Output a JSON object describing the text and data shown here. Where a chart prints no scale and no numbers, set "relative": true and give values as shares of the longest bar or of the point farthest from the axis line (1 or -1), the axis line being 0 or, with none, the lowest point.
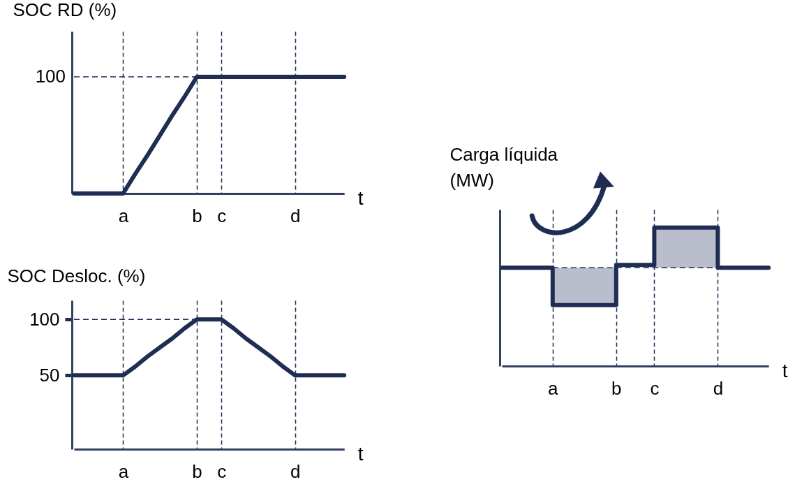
{
  "chart_data": [
    {
      "type": "line",
      "relative": true,
      "ylabel": "SOC RD (%)",
      "xlabel": "t",
      "categories": [
        null,
        null,
        null,
        null,
        "a",
        null,
        null,
        null,
        null,
        null,
        "b",
        null,
        "c",
        null,
        null,
        null,
        null,
        null,
        "d",
        null,
        null,
        null,
        null
      ],
      "grid": "x",
      "series": [
        {
          "color": "#1f2d52",
          "values": [
            0,
            0,
            0,
            0,
            0,
            0.17,
            0.33,
            0.5,
            0.67,
            0.83,
            1,
            1,
            1,
            1,
            1,
            1,
            1,
            1,
            1,
            1,
            1,
            1,
            1
          ]
        }
      ],
      "annotations": [
        "100"
      ],
      "ref_lines": [
        {
          "axis": "y",
          "value": 1,
          "line_style": "dashed",
          "color": "#1f2d52"
        }
      ]
    },
    {
      "type": "line",
      "ylabel": "SOC Desloc. (%)",
      "xlabel": "t",
      "categories": [
        null,
        null,
        null,
        null,
        "a",
        null,
        null,
        null,
        null,
        null,
        "b",
        null,
        "c",
        null,
        null,
        null,
        null,
        null,
        "d",
        null,
        null,
        null,
        null
      ],
      "ylim": [
        -16,
        117
      ],
      "yticks": [
        50,
        100
      ],
      "grid": "x",
      "series": [
        {
          "color": "#1f2d52",
          "values": [
            50,
            50,
            50,
            50,
            50,
            58,
            67,
            75,
            83,
            92,
            100,
            100,
            100,
            92,
            83,
            75,
            67,
            58,
            50,
            50,
            50,
            50,
            50
          ]
        }
      ],
      "ref_lines": [
        {
          "axis": "y",
          "value": 100,
          "line_style": "dashed",
          "color": "#1f2d52"
        }
      ]
    },
    {
      "type": "step",
      "relative": true,
      "ylabel": "Carga líquida (MW)",
      "xlabel": "t",
      "categories": [
        null,
        null,
        null,
        null,
        "a",
        null,
        null,
        null,
        null,
        "b",
        null,
        null,
        "c",
        null,
        null,
        null,
        null,
        "d",
        null,
        null,
        null,
        null
      ],
      "grid": "x",
      "series": [
        {
          "color": "#1f2d52",
          "values": [
            0.71,
            0.71,
            0.71,
            0.71,
            0.44,
            0.44,
            0.44,
            0.44,
            0.44,
            0.73,
            0.73,
            0.73,
            1,
            1,
            1,
            1,
            1,
            0.71,
            0.71,
            0.71,
            0.71,
            0.71
          ],
          "lower": [
            0.71,
            0.71,
            0.71,
            0.71,
            0.44,
            0.44,
            0.44,
            0.44,
            0.44,
            0.71,
            0.71,
            0.71,
            0.71,
            0.71,
            0.71,
            0.71,
            0.71,
            0.71,
            0.71,
            0.71,
            0.71,
            0.71
          ],
          "upper": [
            0.71,
            0.71,
            0.71,
            0.71,
            0.71,
            0.71,
            0.71,
            0.71,
            0.71,
            0.71,
            0.71,
            0.71,
            1,
            1,
            1,
            1,
            1,
            0.71,
            0.71,
            0.71,
            0.71,
            0.71
          ]
        }
      ],
      "ref_lines": [
        {
          "axis": "y",
          "value": 0.71,
          "line_style": "dashed",
          "color": "#1f2d52"
        }
      ]
    }
  ]
}
